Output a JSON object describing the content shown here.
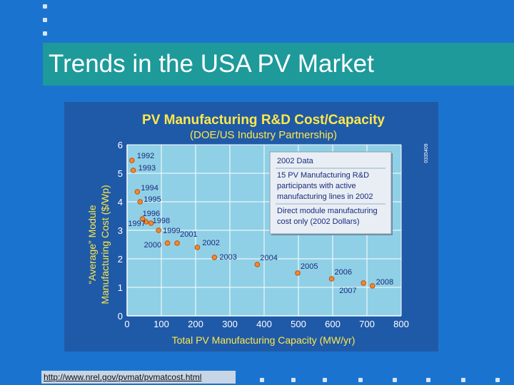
{
  "slide": {
    "title": "Trends in the USA PV Market",
    "link_text": "http://www.nrel.gov/pvmat/pvmatcost.html"
  },
  "colors": {
    "background": "#1a74cf",
    "title_bar": "#1e9a9a",
    "chart_panel": "#1f5aa8",
    "plot_area": "#8fd0e6",
    "marker": "#f28a2a",
    "title_text": "#ffe84a",
    "axis_title_text": "#ffe84a",
    "axis_text": "#ffffff"
  },
  "chart_data": {
    "type": "scatter",
    "title": "PV Manufacturing R&D Cost/Capacity",
    "subtitle": "(DOE/US Industry Partnership)",
    "xlabel": "Total PV Manufacturing Capacity (MW/yr)",
    "ylabel_line1": "“Average” Module",
    "ylabel_line2": "Manufacturing Cost ($/Wp)",
    "xlim": [
      0,
      800
    ],
    "ylim": [
      0,
      6
    ],
    "xticks": [
      0,
      100,
      200,
      300,
      400,
      500,
      600,
      700,
      800
    ],
    "yticks": [
      0,
      1,
      2,
      3,
      4,
      5,
      6
    ],
    "grid": true,
    "side_code": "0335409",
    "points": [
      {
        "label": "1992",
        "x": 14,
        "y": 5.45
      },
      {
        "label": "1993",
        "x": 18,
        "y": 5.1
      },
      {
        "label": "1994",
        "x": 30,
        "y": 4.35
      },
      {
        "label": "1995",
        "x": 38,
        "y": 4.0
      },
      {
        "label": "1996",
        "x": 45,
        "y": 3.4
      },
      {
        "label": "1997",
        "x": 55,
        "y": 3.3
      },
      {
        "label": "1998",
        "x": 70,
        "y": 3.25
      },
      {
        "label": "1999",
        "x": 92,
        "y": 3.0
      },
      {
        "label": "2000",
        "x": 118,
        "y": 2.55
      },
      {
        "label": "2001",
        "x": 146,
        "y": 2.55
      },
      {
        "label": "2002",
        "x": 205,
        "y": 2.4
      },
      {
        "label": "2003",
        "x": 255,
        "y": 2.05
      },
      {
        "label": "2004",
        "x": 380,
        "y": 1.8
      },
      {
        "label": "2005",
        "x": 498,
        "y": 1.5
      },
      {
        "label": "2006",
        "x": 597,
        "y": 1.3
      },
      {
        "label": "2007",
        "x": 690,
        "y": 1.15
      },
      {
        "label": "2008",
        "x": 716,
        "y": 1.05
      }
    ],
    "legend_box": {
      "lines": [
        "2002 Data",
        "15 PV Manufacturing R&D",
        "participants with active",
        "manufacturing lines in 2002",
        "Direct module manufacturing",
        "cost only (2002 Dollars)"
      ],
      "placement": "top-right"
    }
  }
}
